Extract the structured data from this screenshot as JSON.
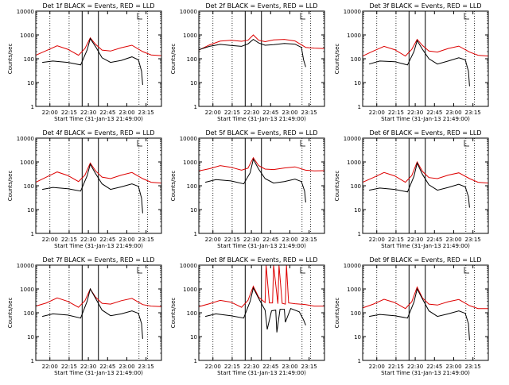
{
  "figure": {
    "colors": {
      "events": "#000000",
      "lld": "#dd0000",
      "axis": "#000000",
      "background": "#ffffff"
    }
  },
  "chart_data": [
    {
      "type": "line",
      "title": "Det 1f BLACK = Events, RED = LLD",
      "xlabel": "Start Time (31-Jan-13 21:49:00)",
      "ylabel": "Counts/sec",
      "y_scale": "log",
      "ylim": [
        1,
        10000
      ],
      "y_ticks": [
        "1",
        "10",
        "100",
        "1000",
        "10000"
      ],
      "x_ticks": [
        "22:00",
        "22:15",
        "22:30",
        "22:45",
        "23:00",
        "23:15"
      ],
      "x_tick_values": [
        660,
        1560,
        2460,
        3360,
        4260,
        5160
      ],
      "xlim": [
        0,
        5880
      ],
      "vlines_solid": [
        2170,
        2930
      ],
      "vlines_dotted": [
        660,
        1560,
        4830,
        5230
      ],
      "series": [
        {
          "name": "Events",
          "color": "#000000",
          "x": [
            300,
            800,
            1500,
            2100,
            2400,
            2550,
            2800,
            3100,
            3500,
            4000,
            4500,
            4800,
            4950,
            5000
          ],
          "values": [
            70,
            80,
            70,
            55,
            230,
            700,
            320,
            110,
            70,
            85,
            120,
            90,
            30,
            8
          ]
        },
        {
          "name": "LLD",
          "color": "#dd0000",
          "x": [
            0,
            500,
            1000,
            1500,
            2000,
            2300,
            2550,
            2800,
            3100,
            3500,
            4000,
            4500,
            5000,
            5400,
            5880
          ],
          "values": [
            140,
            220,
            350,
            250,
            140,
            270,
            750,
            400,
            230,
            210,
            290,
            370,
            200,
            145,
            135
          ]
        }
      ]
    },
    {
      "type": "line",
      "title": "Det 2f BLACK = Events, RED = LLD",
      "xlabel": "Start Time (31-Jan-13 21:49:00)",
      "ylabel": "Counts/sec",
      "y_scale": "log",
      "ylim": [
        1,
        10000
      ],
      "y_ticks": [
        "1",
        "10",
        "100",
        "1000",
        "10000"
      ],
      "x_ticks": [
        "22:00",
        "22:15",
        "22:30",
        "22:45",
        "23:00",
        "23:15"
      ],
      "x_tick_values": [
        660,
        1560,
        2460,
        3360,
        4260,
        5160
      ],
      "xlim": [
        0,
        5880
      ],
      "vlines_solid": [
        2170,
        2930
      ],
      "vlines_dotted": [
        660,
        1560,
        4830,
        5230
      ],
      "series": [
        {
          "name": "Events",
          "color": "#000000",
          "x": [
            0,
            500,
            1000,
            1500,
            2000,
            2300,
            2550,
            2800,
            3100,
            3500,
            4000,
            4500,
            4800,
            4900,
            5000
          ],
          "values": [
            240,
            330,
            400,
            360,
            330,
            420,
            650,
            460,
            370,
            390,
            440,
            410,
            300,
            90,
            45
          ]
        },
        {
          "name": "LLD",
          "color": "#dd0000",
          "x": [
            0,
            500,
            1000,
            1500,
            2000,
            2300,
            2550,
            2800,
            3100,
            3500,
            4000,
            4500,
            5000,
            5400,
            5880
          ],
          "values": [
            230,
            380,
            550,
            600,
            540,
            600,
            1000,
            600,
            520,
            620,
            650,
            560,
            300,
            280,
            270
          ]
        }
      ]
    },
    {
      "type": "line",
      "title": "Det 3f BLACK = Events, RED = LLD",
      "xlabel": "Start Time (31-Jan-13 21:49:00)",
      "ylabel": "Counts/sec",
      "y_scale": "log",
      "ylim": [
        1,
        10000
      ],
      "y_ticks": [
        "1",
        "10",
        "100",
        "1000",
        "10000"
      ],
      "x_ticks": [
        "22:00",
        "22:15",
        "22:30",
        "22:45",
        "23:00",
        "23:15"
      ],
      "x_tick_values": [
        660,
        1560,
        2460,
        3360,
        4260,
        5160
      ],
      "xlim": [
        0,
        5880
      ],
      "vlines_solid": [
        2170,
        2930
      ],
      "vlines_dotted": [
        660,
        1560,
        4830,
        5230
      ],
      "series": [
        {
          "name": "Events",
          "color": "#000000",
          "x": [
            300,
            800,
            1500,
            2100,
            2400,
            2550,
            2800,
            3100,
            3500,
            4000,
            4500,
            4800,
            4950,
            5000
          ],
          "values": [
            60,
            80,
            75,
            55,
            200,
            580,
            250,
            100,
            60,
            80,
            110,
            90,
            30,
            7
          ]
        },
        {
          "name": "LLD",
          "color": "#dd0000",
          "x": [
            0,
            500,
            1000,
            1500,
            2000,
            2300,
            2550,
            2800,
            3100,
            3500,
            4000,
            4500,
            5000,
            5400,
            5880
          ],
          "values": [
            130,
            210,
            330,
            240,
            130,
            250,
            650,
            360,
            210,
            190,
            270,
            340,
            190,
            140,
            130
          ]
        }
      ]
    },
    {
      "type": "line",
      "title": "Det 4f BLACK = Events, RED = LLD",
      "xlabel": "Start Time (31-Jan-13 21:49:00)",
      "ylabel": "Counts/sec",
      "y_scale": "log",
      "ylim": [
        1,
        10000
      ],
      "y_ticks": [
        "1",
        "10",
        "100",
        "1000",
        "10000"
      ],
      "x_ticks": [
        "22:00",
        "22:15",
        "22:30",
        "22:45",
        "23:00",
        "23:15"
      ],
      "x_tick_values": [
        660,
        1560,
        2460,
        3360,
        4260,
        5160
      ],
      "xlim": [
        0,
        5880
      ],
      "vlines_solid": [
        2170,
        2930
      ],
      "vlines_dotted": [
        660,
        1560,
        4830,
        5230
      ],
      "series": [
        {
          "name": "Events",
          "color": "#000000",
          "x": [
            300,
            800,
            1500,
            2100,
            2400,
            2550,
            2800,
            3100,
            3500,
            4000,
            4500,
            4800,
            4950,
            5000
          ],
          "values": [
            70,
            85,
            75,
            60,
            260,
            800,
            320,
            120,
            70,
            90,
            120,
            95,
            30,
            7
          ]
        },
        {
          "name": "LLD",
          "color": "#dd0000",
          "x": [
            0,
            500,
            1000,
            1500,
            2000,
            2300,
            2550,
            2800,
            3100,
            3500,
            4000,
            4500,
            5000,
            5400,
            5880
          ],
          "values": [
            140,
            230,
            380,
            270,
            150,
            280,
            900,
            420,
            230,
            200,
            280,
            360,
            200,
            140,
            130
          ]
        }
      ]
    },
    {
      "type": "line",
      "title": "Det 5f BLACK = Events, RED = LLD",
      "xlabel": "Start Time (31-Jan-13 21:49:00)",
      "ylabel": "Counts/sec",
      "y_scale": "log",
      "ylim": [
        1,
        10000
      ],
      "y_ticks": [
        "1",
        "10",
        "100",
        "1000",
        "10000"
      ],
      "x_ticks": [
        "22:00",
        "22:15",
        "22:30",
        "22:45",
        "23:00",
        "23:15"
      ],
      "x_tick_values": [
        660,
        1560,
        2460,
        3360,
        4260,
        5160
      ],
      "xlim": [
        0,
        5880
      ],
      "vlines_solid": [
        2170,
        2930
      ],
      "vlines_dotted": [
        660,
        1560,
        4830,
        5230
      ],
      "series": [
        {
          "name": "Events",
          "color": "#000000",
          "x": [
            300,
            800,
            1500,
            2100,
            2400,
            2550,
            2800,
            3100,
            3500,
            4000,
            4500,
            4800,
            4950,
            5000
          ],
          "values": [
            140,
            180,
            160,
            120,
            350,
            1300,
            500,
            200,
            130,
            150,
            190,
            150,
            60,
            20
          ]
        },
        {
          "name": "LLD",
          "color": "#dd0000",
          "x": [
            0,
            500,
            1000,
            1500,
            2000,
            2300,
            2550,
            2800,
            3100,
            3500,
            4000,
            4500,
            5000,
            5400,
            5880
          ],
          "values": [
            420,
            520,
            700,
            600,
            450,
            550,
            1500,
            700,
            500,
            480,
            560,
            620,
            450,
            420,
            430
          ]
        }
      ]
    },
    {
      "type": "line",
      "title": "Det 6f BLACK = Events, RED = LLD",
      "xlabel": "Start Time (31-Jan-13 21:49:00)",
      "ylabel": "Counts/sec",
      "y_scale": "log",
      "ylim": [
        1,
        10000
      ],
      "y_ticks": [
        "1",
        "10",
        "100",
        "1000",
        "10000"
      ],
      "x_ticks": [
        "22:00",
        "22:15",
        "22:30",
        "22:45",
        "23:00",
        "23:15"
      ],
      "x_tick_values": [
        660,
        1560,
        2460,
        3360,
        4260,
        5160
      ],
      "xlim": [
        0,
        5880
      ],
      "vlines_solid": [
        2170,
        2930
      ],
      "vlines_dotted": [
        660,
        1560,
        4830,
        5230
      ],
      "series": [
        {
          "name": "Events",
          "color": "#000000",
          "x": [
            300,
            800,
            1500,
            2100,
            2400,
            2550,
            2800,
            3100,
            3500,
            4000,
            4500,
            4800,
            4950,
            5000
          ],
          "values": [
            65,
            80,
            70,
            55,
            250,
            900,
            300,
            110,
            65,
            85,
            115,
            90,
            35,
            12
          ]
        },
        {
          "name": "LLD",
          "color": "#dd0000",
          "x": [
            0,
            500,
            1000,
            1500,
            2000,
            2300,
            2550,
            2800,
            3100,
            3500,
            4000,
            4500,
            5000,
            5400,
            5880
          ],
          "values": [
            140,
            220,
            360,
            260,
            140,
            270,
            1000,
            400,
            220,
            200,
            280,
            350,
            200,
            140,
            130
          ]
        }
      ]
    },
    {
      "type": "line",
      "title": "Det 7f BLACK = Events, RED = LLD",
      "xlabel": "Start Time (31-Jan-13 21:49:00)",
      "ylabel": "Counts/sec",
      "y_scale": "log",
      "ylim": [
        1,
        10000
      ],
      "y_ticks": [
        "1",
        "10",
        "100",
        "1000",
        "10000"
      ],
      "x_ticks": [
        "22:00",
        "22:15",
        "22:30",
        "22:45",
        "23:00",
        "23:15"
      ],
      "x_tick_values": [
        660,
        1560,
        2460,
        3360,
        4260,
        5160
      ],
      "xlim": [
        0,
        5880
      ],
      "vlines_solid": [
        2170,
        2930
      ],
      "vlines_dotted": [
        660,
        1560,
        4830,
        5230
      ],
      "series": [
        {
          "name": "Events",
          "color": "#000000",
          "x": [
            300,
            800,
            1500,
            2100,
            2400,
            2550,
            2800,
            3100,
            3500,
            4000,
            4500,
            4800,
            4950,
            5000
          ],
          "values": [
            70,
            90,
            80,
            60,
            300,
            1000,
            400,
            130,
            75,
            90,
            120,
            95,
            35,
            8
          ]
        },
        {
          "name": "LLD",
          "color": "#dd0000",
          "x": [
            0,
            500,
            1000,
            1500,
            2000,
            2300,
            2550,
            2800,
            3100,
            3500,
            4000,
            4500,
            5000,
            5400,
            5880
          ],
          "values": [
            190,
            260,
            420,
            300,
            170,
            320,
            1000,
            450,
            250,
            230,
            320,
            400,
            220,
            190,
            180
          ]
        }
      ]
    },
    {
      "type": "line",
      "title": "Det 8f BLACK = Events, RED = LLD",
      "xlabel": "Start Time (31-Jan-13 21:49:00)",
      "ylabel": "Counts/sec",
      "y_scale": "log",
      "ylim": [
        1,
        10000
      ],
      "y_ticks": [
        "1",
        "10",
        "100",
        "1000",
        "10000"
      ],
      "x_ticks": [
        "22:00",
        "22:15",
        "22:30",
        "22:45",
        "23:00",
        "23:15"
      ],
      "x_tick_values": [
        660,
        1560,
        2460,
        3360,
        4260,
        5160
      ],
      "xlim": [
        0,
        5880
      ],
      "vlines_solid": [
        2170,
        2930
      ],
      "vlines_dotted": [
        660,
        1560,
        4830,
        5230
      ],
      "series": [
        {
          "name": "Events",
          "color": "#000000",
          "x": [
            300,
            800,
            1500,
            2100,
            2400,
            2550,
            2800,
            3100,
            3200,
            3400,
            3600,
            3650,
            3800,
            4000,
            4050,
            4300,
            4700,
            4900,
            5000
          ],
          "values": [
            70,
            90,
            75,
            60,
            300,
            1100,
            400,
            130,
            20,
            120,
            130,
            15,
            140,
            140,
            40,
            150,
            110,
            50,
            30
          ]
        },
        {
          "name": "LLD",
          "color": "#dd0000",
          "x": [
            0,
            500,
            1000,
            1500,
            2000,
            2300,
            2550,
            2800,
            3100,
            3150,
            3300,
            3450,
            3500,
            3700,
            3750,
            3900,
            4050,
            4100,
            4200,
            4500,
            5000,
            5400,
            5880
          ],
          "values": [
            180,
            240,
            330,
            280,
            170,
            330,
            1300,
            450,
            270,
            10000,
            260,
            260,
            10000,
            240,
            10000,
            250,
            230,
            10000,
            260,
            240,
            220,
            190,
            190
          ]
        }
      ]
    },
    {
      "type": "line",
      "title": "Det 9f BLACK = Events, RED = LLD",
      "xlabel": "Start Time (31-Jan-13 21:49:00)",
      "ylabel": "Counts/sec",
      "y_scale": "log",
      "ylim": [
        1,
        10000
      ],
      "y_ticks": [
        "1",
        "10",
        "100",
        "1000",
        "10000"
      ],
      "x_ticks": [
        "22:00",
        "22:15",
        "22:30",
        "22:45",
        "23:00",
        "23:15"
      ],
      "x_tick_values": [
        660,
        1560,
        2460,
        3360,
        4260,
        5160
      ],
      "xlim": [
        0,
        5880
      ],
      "vlines_solid": [
        2170,
        2930
      ],
      "vlines_dotted": [
        660,
        1560,
        4830,
        5230
      ],
      "series": [
        {
          "name": "Events",
          "color": "#000000",
          "x": [
            300,
            800,
            1500,
            2100,
            2400,
            2550,
            2800,
            3100,
            3500,
            4000,
            4500,
            4800,
            4950,
            5000
          ],
          "values": [
            70,
            85,
            75,
            60,
            280,
            1000,
            380,
            120,
            70,
            90,
            120,
            95,
            35,
            7
          ]
        },
        {
          "name": "LLD",
          "color": "#dd0000",
          "x": [
            0,
            500,
            1000,
            1500,
            2000,
            2300,
            2550,
            2800,
            3100,
            3500,
            4000,
            4500,
            5000,
            5400,
            5880
          ],
          "values": [
            160,
            230,
            370,
            270,
            150,
            290,
            1200,
            420,
            230,
            210,
            290,
            360,
            200,
            150,
            150
          ]
        }
      ]
    }
  ]
}
